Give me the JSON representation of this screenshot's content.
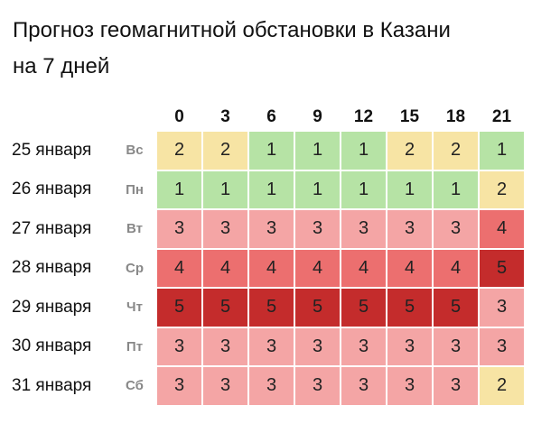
{
  "title_line1": "Прогноз геомагнитной обстановки в Казани",
  "title_line2": "на 7 дней",
  "hours": [
    "0",
    "3",
    "6",
    "9",
    "12",
    "15",
    "18",
    "21"
  ],
  "rows": [
    {
      "date": "25 января",
      "dow": "Вс",
      "values": [
        2,
        2,
        1,
        1,
        1,
        2,
        2,
        1
      ]
    },
    {
      "date": "26 января",
      "dow": "Пн",
      "values": [
        1,
        1,
        1,
        1,
        1,
        1,
        1,
        2
      ]
    },
    {
      "date": "27 января",
      "dow": "Вт",
      "values": [
        3,
        3,
        3,
        3,
        3,
        3,
        3,
        4
      ]
    },
    {
      "date": "28 января",
      "dow": "Ср",
      "values": [
        4,
        4,
        4,
        4,
        4,
        4,
        4,
        5
      ]
    },
    {
      "date": "29 января",
      "dow": "Чт",
      "values": [
        5,
        5,
        5,
        5,
        5,
        5,
        5,
        3
      ]
    },
    {
      "date": "30 января",
      "dow": "Пт",
      "values": [
        3,
        3,
        3,
        3,
        3,
        3,
        3,
        3
      ]
    },
    {
      "date": "31 января",
      "dow": "Сб",
      "values": [
        3,
        3,
        3,
        3,
        3,
        3,
        3,
        2
      ]
    }
  ],
  "level_colors": {
    "1": "#b6e3a5",
    "2": "#f7e4a4",
    "3": "#f4a5a5",
    "4": "#ec6f6f",
    "5": "#c42c2c"
  }
}
